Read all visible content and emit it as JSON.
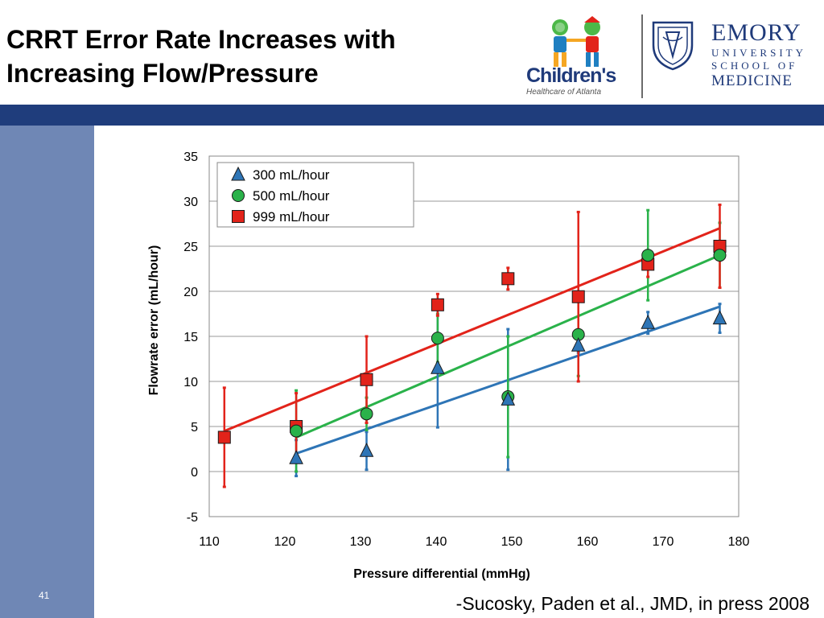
{
  "slide": {
    "title_line1": "CRRT Error Rate Increases with",
    "title_line2": "Increasing Flow/Pressure",
    "slide_number": "41",
    "citation": "-Sucosky, Paden et al., JMD, in press 2008"
  },
  "logos": {
    "choa_name": "Children's",
    "choa_sub": "Healthcare of Atlanta",
    "emory_line1": "EMORY",
    "emory_line2": "UNIVERSITY",
    "emory_line3": "SCHOOL OF",
    "emory_line4": "MEDICINE"
  },
  "colors": {
    "header_bar": "#1f3d7c",
    "side_bar": "#6f87b5",
    "series_300": "#2e75b6",
    "series_500": "#2ab24a",
    "series_999": "#e2231a"
  },
  "chart_data": {
    "type": "scatter",
    "xlabel": "Pressure differential (mmHg)",
    "ylabel": "Flowrate error (mL/hour)",
    "xlim": [
      110,
      180
    ],
    "ylim": [
      -5,
      35
    ],
    "xticks": [
      110,
      120,
      130,
      140,
      150,
      160,
      170,
      180
    ],
    "yticks": [
      -5,
      0,
      5,
      10,
      15,
      20,
      25,
      30,
      35
    ],
    "grid": "horizontal",
    "legend_position": "top-left",
    "series": [
      {
        "name": "300 mL/hour",
        "marker": "triangle",
        "color": "#2e75b6",
        "points": [
          {
            "x": 121.5,
            "y": 1.5,
            "err": 2.0
          },
          {
            "x": 130.8,
            "y": 2.3,
            "err": 2.1
          },
          {
            "x": 140.2,
            "y": 11.5,
            "err": 6.6
          },
          {
            "x": 149.5,
            "y": 8.0,
            "err": 7.8
          },
          {
            "x": 158.8,
            "y": 14.0,
            "err": 0.8
          },
          {
            "x": 168.0,
            "y": 16.5,
            "err": 1.2
          },
          {
            "x": 177.5,
            "y": 17.0,
            "err": 1.6
          }
        ],
        "trend": [
          [
            121.5,
            2.0
          ],
          [
            177.5,
            18.3
          ]
        ]
      },
      {
        "name": "500 mL/hour",
        "marker": "circle",
        "color": "#2ab24a",
        "points": [
          {
            "x": 121.5,
            "y": 4.5,
            "err": 4.5
          },
          {
            "x": 130.8,
            "y": 6.4,
            "err": 1.8
          },
          {
            "x": 140.2,
            "y": 14.8,
            "err": 2.7
          },
          {
            "x": 149.5,
            "y": 8.3,
            "err": 6.7
          },
          {
            "x": 158.8,
            "y": 15.2,
            "err": 4.6
          },
          {
            "x": 168.0,
            "y": 24.0,
            "err": 5.0
          },
          {
            "x": 177.5,
            "y": 24.0,
            "err": 3.6
          }
        ],
        "trend": [
          [
            121.5,
            3.8
          ],
          [
            177.5,
            24.0
          ]
        ]
      },
      {
        "name": "999 mL/hour",
        "marker": "square",
        "color": "#e2231a",
        "points": [
          {
            "x": 112.0,
            "y": 3.8,
            "err": 5.5
          },
          {
            "x": 121.5,
            "y": 5.0,
            "err": 3.7
          },
          {
            "x": 130.8,
            "y": 10.2,
            "err": 4.8
          },
          {
            "x": 140.2,
            "y": 18.5,
            "err": 1.2
          },
          {
            "x": 149.5,
            "y": 21.4,
            "err": 1.2
          },
          {
            "x": 158.8,
            "y": 19.4,
            "err": 9.4
          },
          {
            "x": 168.0,
            "y": 23.0,
            "err": 1.4
          },
          {
            "x": 177.5,
            "y": 25.0,
            "err": 4.6
          }
        ],
        "trend": [
          [
            112.0,
            4.5
          ],
          [
            177.5,
            27.0
          ]
        ]
      }
    ]
  }
}
